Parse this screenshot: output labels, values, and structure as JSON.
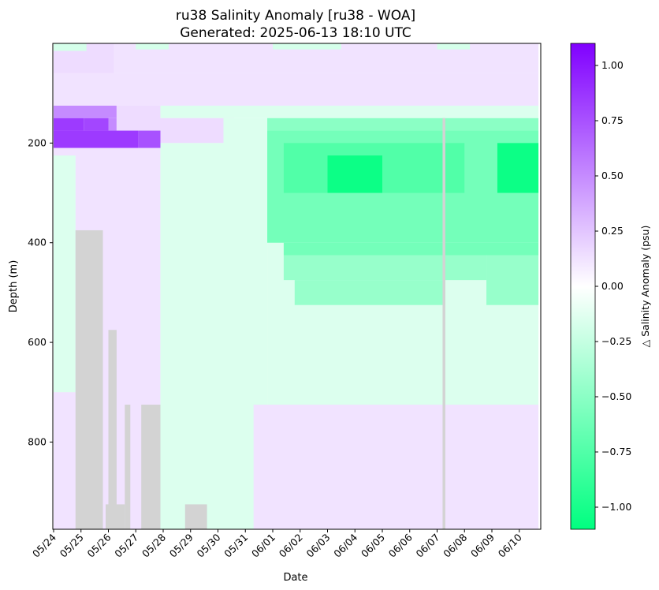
{
  "chart_data": {
    "type": "heatmap",
    "title": "ru38 Salinity Anomaly [ru38 - WOA]",
    "subtitle": "Generated: 2025-06-13 18:10 UTC",
    "xlabel": "Date",
    "ylabel": "Depth (m)",
    "colorbar_label": "△ Salinity Anomaly (psu)",
    "x_ticks": [
      "05/24",
      "05/25",
      "05/26",
      "05/27",
      "05/28",
      "05/29",
      "05/30",
      "05/31",
      "06/01",
      "06/02",
      "06/03",
      "06/04",
      "06/05",
      "06/06",
      "06/07",
      "06/08",
      "06/09",
      "06/10"
    ],
    "xlim": [
      "2025-05-24",
      "2025-06-10 17:00"
    ],
    "y_ticks": [
      200,
      400,
      600,
      800
    ],
    "ylim": [
      975,
      0
    ],
    "y_inverted": true,
    "color_ticks": [
      "1.00",
      "0.75",
      "0.50",
      "0.25",
      "0.00",
      "−0.25",
      "−0.50",
      "−0.75",
      "−1.00"
    ],
    "color_range": [
      -1.1,
      1.1
    ],
    "colormap": {
      "high": "#8000ff",
      "mid": "#ffffff",
      "low": "#00ff80",
      "nodata": "#d3d3d3"
    },
    "depth_bins": [
      0,
      25,
      50,
      75,
      100,
      125,
      150,
      175,
      200,
      250,
      300,
      350,
      375,
      400,
      425,
      450,
      475,
      500,
      525,
      550,
      575,
      600,
      625,
      650,
      675,
      700,
      725,
      750,
      775,
      800,
      825,
      850,
      875,
      900,
      925,
      950,
      975
    ],
    "cells": [
      {
        "x0": 0,
        "x1": 2.2,
        "y0": 0,
        "y1": 60,
        "v": 0.15
      },
      {
        "x0": 0,
        "x1": 17.7,
        "y0": 60,
        "y1": 125,
        "v": 0.12
      },
      {
        "x0": 2.2,
        "x1": 17.7,
        "y0": 0,
        "y1": 60,
        "v": 0.12
      },
      {
        "x0": 0,
        "x1": 1.2,
        "y0": 0,
        "y1": 15,
        "v": -0.18
      },
      {
        "x0": 3,
        "x1": 4.2,
        "y0": 0,
        "y1": 12,
        "v": -0.18
      },
      {
        "x0": 8,
        "x1": 10.5,
        "y0": 0,
        "y1": 12,
        "v": -0.18
      },
      {
        "x0": 14,
        "x1": 15.2,
        "y0": 0,
        "y1": 12,
        "v": -0.18
      },
      {
        "x0": 0,
        "x1": 2.3,
        "y0": 125,
        "y1": 150,
        "v": 0.5
      },
      {
        "x0": 0,
        "x1": 1.1,
        "y0": 150,
        "y1": 175,
        "v": 0.85
      },
      {
        "x0": 1.1,
        "x1": 2.0,
        "y0": 150,
        "y1": 175,
        "v": 0.8
      },
      {
        "x0": 2.0,
        "x1": 2.3,
        "y0": 150,
        "y1": 175,
        "v": 0.5
      },
      {
        "x0": 2.3,
        "x1": 3.9,
        "y0": 125,
        "y1": 175,
        "v": 0.15
      },
      {
        "x0": 3.9,
        "x1": 17.7,
        "y0": 125,
        "y1": 150,
        "v": -0.15
      },
      {
        "x0": 0,
        "x1": 3.1,
        "y0": 175,
        "y1": 210,
        "v": 0.85
      },
      {
        "x0": 3.1,
        "x1": 3.9,
        "y0": 175,
        "y1": 210,
        "v": 0.75
      },
      {
        "x0": 3.9,
        "x1": 6.6,
        "y0": 150,
        "y1": 200,
        "v": 0.15
      },
      {
        "x0": 0,
        "x1": 3.9,
        "y0": 210,
        "y1": 975,
        "v": 0.12
      },
      {
        "x0": 0,
        "x1": 0.8,
        "y0": 225,
        "y1": 700,
        "v": -0.15
      },
      {
        "x0": 0.8,
        "x1": 1.8,
        "y0": 375,
        "y1": 975,
        "v": null
      },
      {
        "x0": 2.0,
        "x1": 2.3,
        "y0": 575,
        "y1": 975,
        "v": null
      },
      {
        "x0": 1.9,
        "x1": 2.6,
        "y0": 925,
        "y1": 975,
        "v": null
      },
      {
        "x0": 2.6,
        "x1": 2.8,
        "y0": 725,
        "y1": 975,
        "v": null
      },
      {
        "x0": 3.2,
        "x1": 3.9,
        "y0": 725,
        "y1": 975,
        "v": null
      },
      {
        "x0": 3.9,
        "x1": 7.8,
        "y0": 200,
        "y1": 975,
        "v": -0.15
      },
      {
        "x0": 4.8,
        "x1": 5.6,
        "y0": 925,
        "y1": 975,
        "v": null
      },
      {
        "x0": 6.2,
        "x1": 7.8,
        "y0": 150,
        "y1": 975,
        "v": -0.15
      },
      {
        "x0": 7.8,
        "x1": 17.7,
        "y0": 150,
        "y1": 975,
        "v": -0.15
      },
      {
        "x0": 7.3,
        "x1": 17.7,
        "y0": 725,
        "y1": 975,
        "v": 0.12
      },
      {
        "x0": 7.8,
        "x1": 17.7,
        "y0": 150,
        "y1": 175,
        "v": -0.5
      },
      {
        "x0": 7.8,
        "x1": 17.7,
        "y0": 175,
        "y1": 400,
        "v": -0.6
      },
      {
        "x0": 8.4,
        "x1": 17.7,
        "y0": 400,
        "y1": 425,
        "v": -0.6
      },
      {
        "x0": 8.4,
        "x1": 15.8,
        "y0": 425,
        "y1": 475,
        "v": -0.45
      },
      {
        "x0": 8.8,
        "x1": 14.3,
        "y0": 475,
        "y1": 525,
        "v": -0.45
      },
      {
        "x0": 15.8,
        "x1": 17.7,
        "y0": 425,
        "y1": 525,
        "v": -0.45
      },
      {
        "x0": 8.4,
        "x1": 15.0,
        "y0": 200,
        "y1": 300,
        "v": -0.75
      },
      {
        "x0": 10.0,
        "x1": 12.0,
        "y0": 225,
        "y1": 300,
        "v": -1.05
      },
      {
        "x0": 16.2,
        "x1": 17.7,
        "y0": 200,
        "y1": 300,
        "v": -1.05
      },
      {
        "x0": 14.2,
        "x1": 14.3,
        "y0": 150,
        "y1": 975,
        "v": null
      }
    ]
  }
}
